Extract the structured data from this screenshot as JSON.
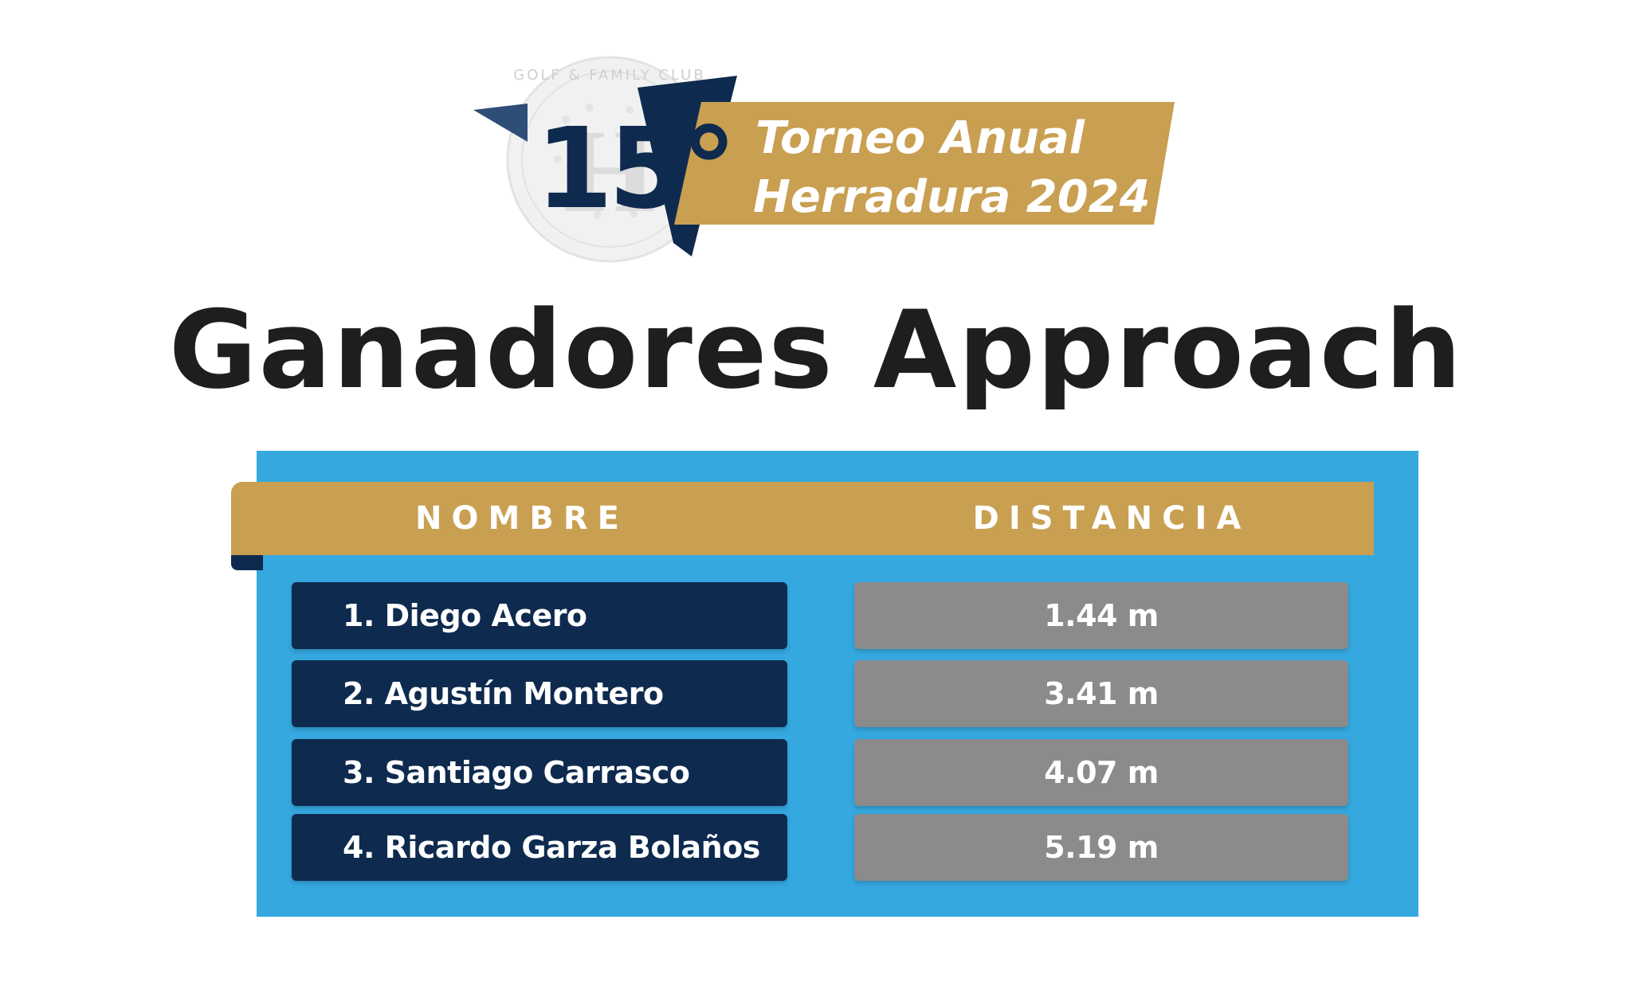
{
  "logo": {
    "number": "15°",
    "seal_text": "GOLF & FAMILY CLUB",
    "line1": "Torneo Anual",
    "line2": "Herradura 2024",
    "colors": {
      "navy": "#0e2a4f",
      "gold": "#c99f51"
    }
  },
  "headline": "Ganadores Approach",
  "table": {
    "headers": {
      "name": "NOMBRE",
      "distance": "DISTANCIA"
    },
    "rows": [
      {
        "name": "1.  Diego Acero",
        "distance": "1.44 m"
      },
      {
        "name": "2. Agustín Montero",
        "distance": "3.41 m"
      },
      {
        "name": "3. Santiago Carrasco",
        "distance": "4.07 m"
      },
      {
        "name": "4. Ricardo Garza Bolaños",
        "distance": "5.19 m"
      }
    ]
  },
  "colors": {
    "panel": "#35a8e0",
    "header": "#c99f51",
    "name_cell": "#0e2a4f",
    "distance_cell": "#8b8b8b"
  }
}
